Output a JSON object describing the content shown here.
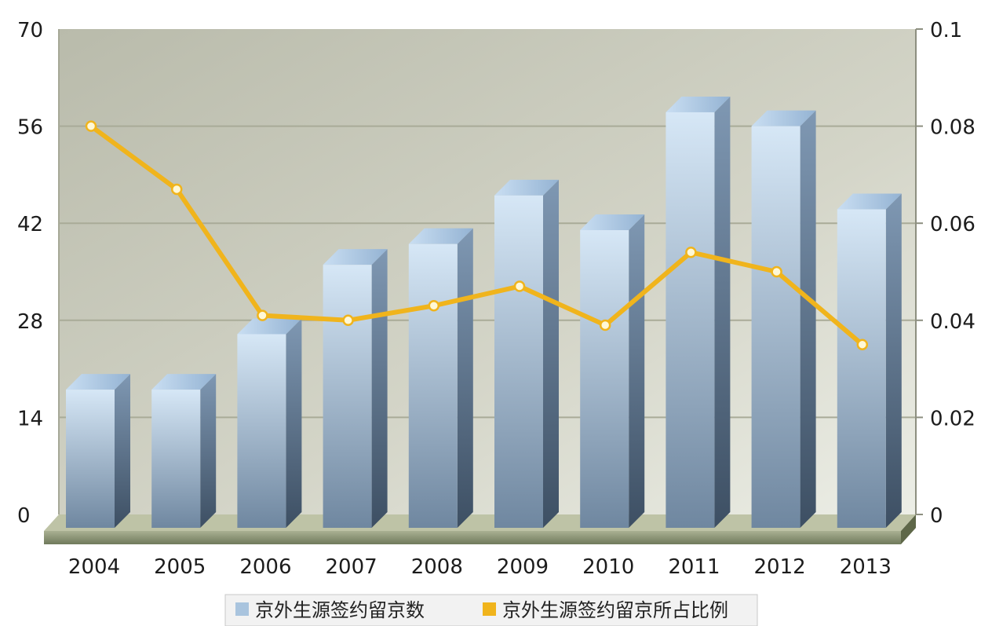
{
  "chart_data": {
    "type": "bar",
    "categories": [
      "2004",
      "2005",
      "2006",
      "2007",
      "2008",
      "2009",
      "2010",
      "2011",
      "2012",
      "2013"
    ],
    "series": [
      {
        "name": "京外生源签约留京数",
        "axis": "left",
        "type": "bar",
        "values": [
          18,
          18,
          26,
          36,
          39,
          46,
          41,
          58,
          56,
          44
        ]
      },
      {
        "name": "京外生源签约留京所占比例",
        "axis": "right",
        "type": "line",
        "values": [
          0.08,
          0.067,
          0.041,
          0.04,
          0.043,
          0.047,
          0.039,
          0.054,
          0.05,
          0.035
        ]
      }
    ],
    "y_left": {
      "lim": [
        0,
        70
      ],
      "ticks": [
        "0",
        "14",
        "28",
        "42",
        "56",
        "70"
      ]
    },
    "y_right": {
      "lim": [
        0,
        0.1
      ],
      "ticks": [
        "0",
        "0.02",
        "0.04",
        "0.06",
        "0.08",
        "0.1"
      ]
    },
    "grid": true,
    "legend": "bottom",
    "colors": {
      "bar": "#a9c4de",
      "line": "#f0b41c",
      "plot_bg": "#c9cbbd"
    }
  }
}
